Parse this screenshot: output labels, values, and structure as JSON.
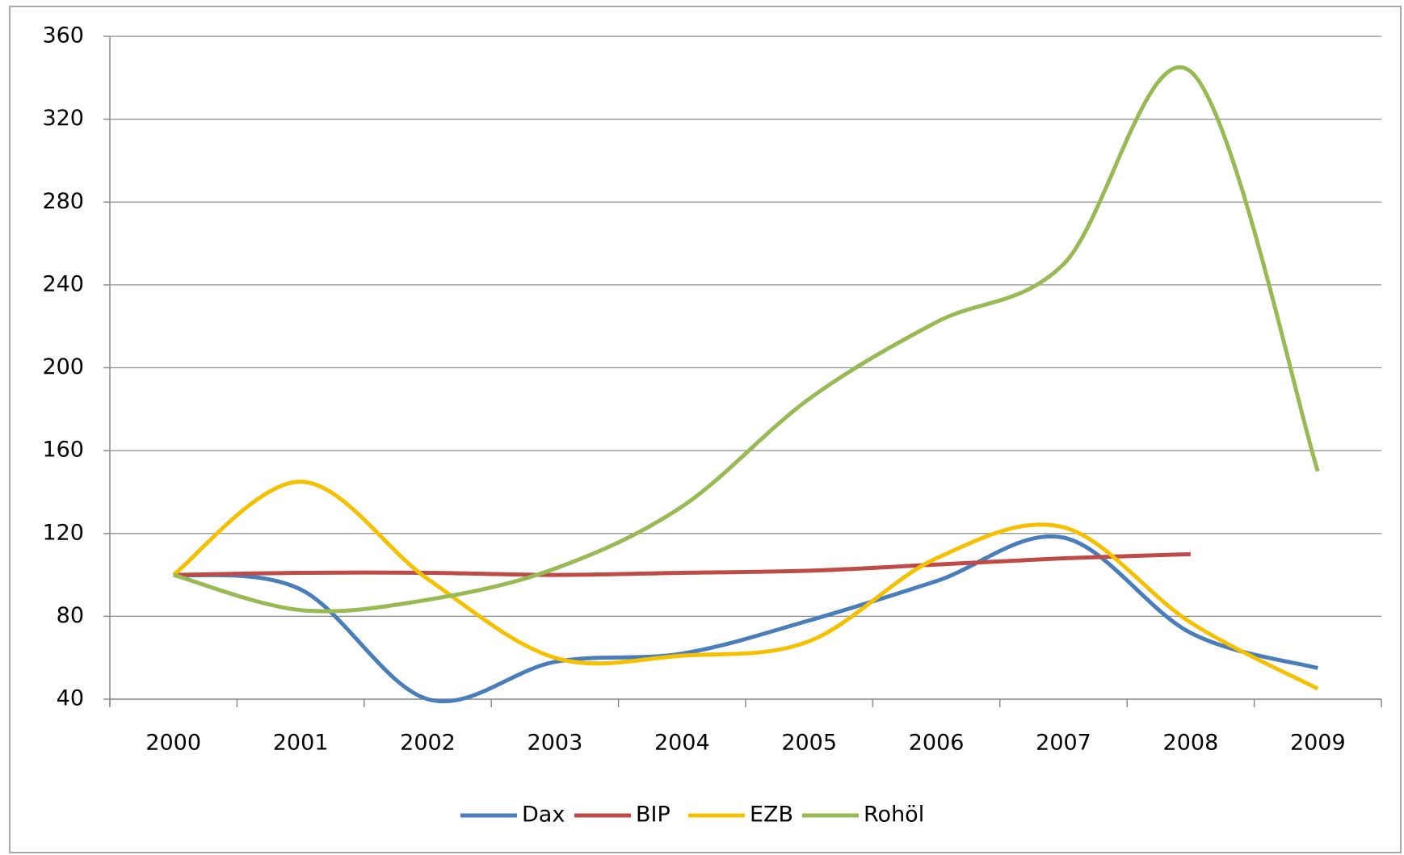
{
  "chart_data": {
    "type": "line",
    "categories": [
      "2000",
      "2001",
      "2002",
      "2003",
      "2004",
      "2005",
      "2006",
      "2007",
      "2008",
      "2009"
    ],
    "series": [
      {
        "name": "Dax",
        "color": "#4a7ebb",
        "values": [
          100,
          93,
          40,
          58,
          62,
          78,
          97,
          118,
          72,
          55
        ]
      },
      {
        "name": "BIP",
        "color": "#be4b48",
        "values": [
          100,
          101,
          101,
          100,
          101,
          102,
          105,
          108,
          110,
          null
        ]
      },
      {
        "name": "EZB",
        "color": "#f5c000",
        "values": [
          100,
          145,
          98,
          60,
          61,
          68,
          108,
          123,
          77,
          45
        ]
      },
      {
        "name": "Rohöl",
        "color": "#98b954",
        "values": [
          100,
          83,
          88,
          103,
          133,
          185,
          222,
          250,
          343,
          150
        ]
      }
    ],
    "ylim": [
      40,
      360
    ],
    "yticks": [
      40,
      80,
      120,
      160,
      200,
      240,
      280,
      320,
      360
    ],
    "grid": true,
    "smooth": true,
    "legend": "bottom"
  }
}
